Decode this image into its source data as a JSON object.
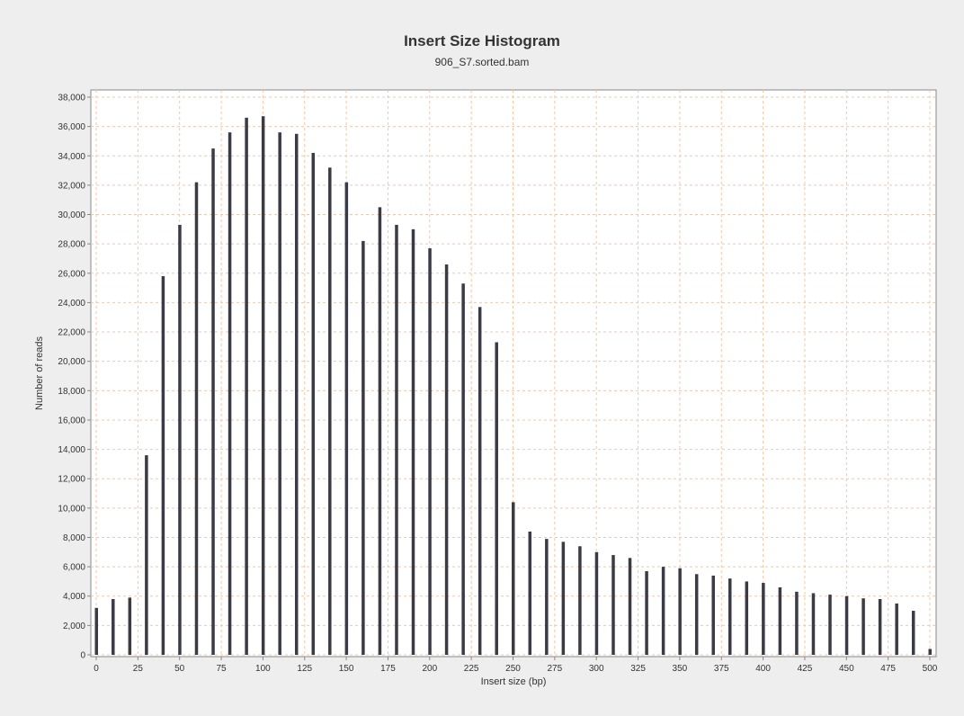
{
  "chart_data": {
    "type": "bar",
    "title": "Insert Size Histogram",
    "subtitle": "906_S7.sorted.bam",
    "xlabel": "Insert size (bp)",
    "ylabel": "Number of reads",
    "xlim": [
      0,
      500
    ],
    "ylim": [
      0,
      38000
    ],
    "x_ticks": [
      0,
      25,
      50,
      75,
      100,
      125,
      150,
      175,
      200,
      225,
      250,
      275,
      300,
      325,
      350,
      375,
      400,
      425,
      450,
      475,
      500
    ],
    "y_ticks": [
      0,
      2000,
      4000,
      6000,
      8000,
      10000,
      12000,
      14000,
      16000,
      18000,
      20000,
      22000,
      24000,
      26000,
      28000,
      30000,
      32000,
      34000,
      36000,
      38000
    ],
    "x_tick_labels": [
      "0",
      "25",
      "50",
      "75",
      "100",
      "125",
      "150",
      "175",
      "200",
      "225",
      "250",
      "275",
      "300",
      "325",
      "350",
      "375",
      "400",
      "425",
      "450",
      "475",
      "500"
    ],
    "y_tick_labels": [
      "0",
      "2,000",
      "4,000",
      "6,000",
      "8,000",
      "10,000",
      "12,000",
      "14,000",
      "16,000",
      "18,000",
      "20,000",
      "22,000",
      "24,000",
      "26,000",
      "28,000",
      "30,000",
      "32,000",
      "34,000",
      "36,000",
      "38,000"
    ],
    "grid": true,
    "colors": {
      "bar": "#3b3b45",
      "grid": "#f2c7a8",
      "plot_bg": "#ffffff",
      "axis": "#888888"
    },
    "x": [
      0,
      10,
      20,
      30,
      40,
      50,
      60,
      70,
      80,
      90,
      100,
      110,
      120,
      130,
      140,
      150,
      160,
      170,
      180,
      190,
      200,
      210,
      220,
      230,
      240,
      250,
      260,
      270,
      280,
      290,
      300,
      310,
      320,
      330,
      340,
      350,
      360,
      370,
      380,
      390,
      400,
      410,
      420,
      430,
      440,
      450,
      460,
      470,
      480,
      490,
      500
    ],
    "values": [
      3200,
      3800,
      3900,
      13600,
      25800,
      29300,
      32200,
      34500,
      35600,
      36600,
      36700,
      35600,
      35500,
      34200,
      33200,
      32200,
      28200,
      30500,
      29300,
      29000,
      27700,
      26600,
      25300,
      23700,
      21300,
      10400,
      8400,
      7900,
      7700,
      7400,
      7000,
      6800,
      6600,
      5700,
      6000,
      5900,
      5500,
      5400,
      5200,
      5000,
      4900,
      4600,
      4300,
      4200,
      4100,
      4000,
      3850,
      3800,
      3500,
      3000,
      400
    ]
  }
}
